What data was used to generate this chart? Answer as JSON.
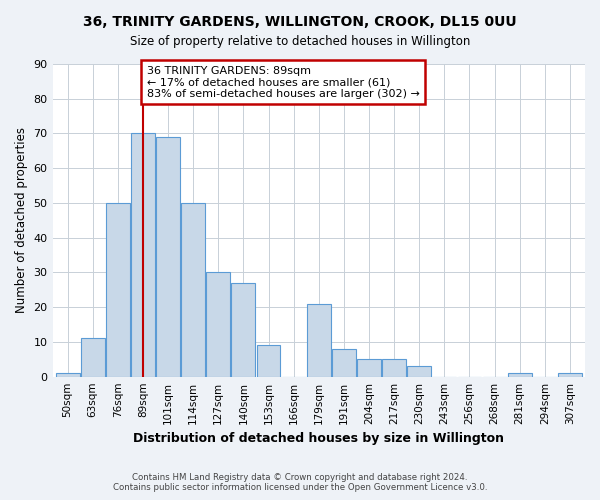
{
  "title": "36, TRINITY GARDENS, WILLINGTON, CROOK, DL15 0UU",
  "subtitle": "Size of property relative to detached houses in Willington",
  "xlabel": "Distribution of detached houses by size in Willington",
  "ylabel": "Number of detached properties",
  "bar_labels": [
    "50sqm",
    "63sqm",
    "76sqm",
    "89sqm",
    "101sqm",
    "114sqm",
    "127sqm",
    "140sqm",
    "153sqm",
    "166sqm",
    "179sqm",
    "191sqm",
    "204sqm",
    "217sqm",
    "230sqm",
    "243sqm",
    "256sqm",
    "268sqm",
    "281sqm",
    "294sqm",
    "307sqm"
  ],
  "bar_values": [
    1,
    11,
    50,
    70,
    69,
    50,
    30,
    27,
    9,
    0,
    21,
    8,
    5,
    5,
    3,
    0,
    0,
    0,
    1,
    0,
    1
  ],
  "bar_color": "#c8d8e8",
  "bar_edge_color": "#5b9bd5",
  "vline_x_index": 3,
  "vline_color": "#c00000",
  "annotation_title": "36 TRINITY GARDENS: 89sqm",
  "annotation_line1": "← 17% of detached houses are smaller (61)",
  "annotation_line2": "83% of semi-detached houses are larger (302) →",
  "annotation_box_color": "#c00000",
  "ylim": [
    0,
    90
  ],
  "yticks": [
    0,
    10,
    20,
    30,
    40,
    50,
    60,
    70,
    80,
    90
  ],
  "footer1": "Contains HM Land Registry data © Crown copyright and database right 2024.",
  "footer2": "Contains public sector information licensed under the Open Government Licence v3.0.",
  "bg_color": "#eef2f7",
  "plot_bg_color": "#ffffff",
  "grid_color": "#c8d0d8"
}
